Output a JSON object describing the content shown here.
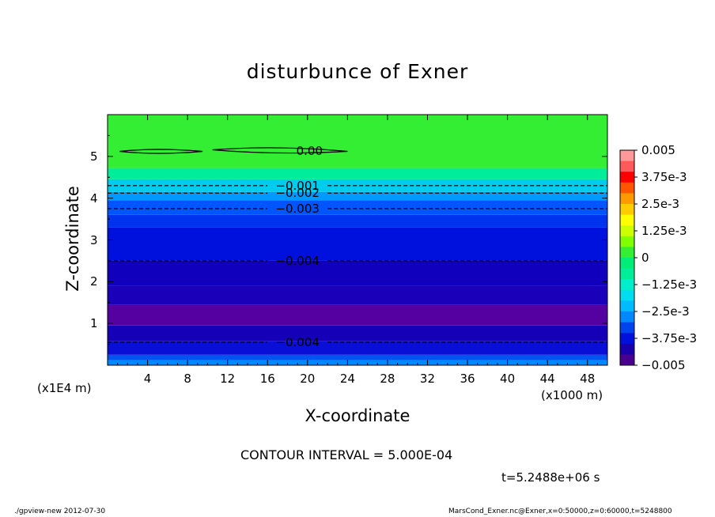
{
  "chart_data": {
    "type": "heatmap",
    "title": "disturbunce of Exner",
    "xlabel": "X-coordinate",
    "ylabel": "Z-coordinate",
    "x_unit": "(x1000 m)",
    "y_unit": "(x1E4 m)",
    "xlim": [
      0,
      50
    ],
    "ylim": [
      0,
      6
    ],
    "x_ticks": [
      "4",
      "8",
      "12",
      "16",
      "20",
      "24",
      "28",
      "32",
      "36",
      "40",
      "44",
      "48"
    ],
    "y_ticks": [
      "1",
      "2",
      "3",
      "4",
      "5"
    ],
    "colorbar_ticks": [
      "0.005",
      "3.75e-3",
      "2.5e-3",
      "1.25e-3",
      "0",
      "−1.25e-3",
      "−2.5e-3",
      "−3.75e-3",
      "−0.005"
    ],
    "colorbar_range": [
      -0.005,
      0.005
    ],
    "colorbar_colors": [
      "#ff9999",
      "#ff5a5a",
      "#ff0000",
      "#ff5500",
      "#ff9900",
      "#ffcc00",
      "#ffff00",
      "#ccff00",
      "#7fff00",
      "#33ee33",
      "#00ee77",
      "#00ee99",
      "#00eecc",
      "#00ddee",
      "#00bbff",
      "#0088ff",
      "#0044ee",
      "#0011dd",
      "#1a00aa",
      "#4a008f"
    ],
    "bands": [
      {
        "z_from": 0.0,
        "z_to": 0.12,
        "color": "#0088ff"
      },
      {
        "z_from": 0.12,
        "z_to": 0.25,
        "color": "#0055f0"
      },
      {
        "z_from": 0.25,
        "z_to": 0.58,
        "color": "#0a0fd8"
      },
      {
        "z_from": 0.58,
        "z_to": 0.95,
        "color": "#1500b8"
      },
      {
        "z_from": 0.95,
        "z_to": 1.45,
        "color": "#5500a0"
      },
      {
        "z_from": 1.45,
        "z_to": 1.9,
        "color": "#1a00b8"
      },
      {
        "z_from": 1.9,
        "z_to": 2.5,
        "color": "#1000bd"
      },
      {
        "z_from": 2.5,
        "z_to": 3.3,
        "color": "#0011dd"
      },
      {
        "z_from": 3.3,
        "z_to": 3.6,
        "color": "#0033ee"
      },
      {
        "z_from": 3.6,
        "z_to": 3.95,
        "color": "#0055ff"
      },
      {
        "z_from": 3.95,
        "z_to": 4.15,
        "color": "#0099ff"
      },
      {
        "z_from": 4.15,
        "z_to": 4.45,
        "color": "#00ccee"
      },
      {
        "z_from": 4.45,
        "z_to": 4.72,
        "color": "#00ee99"
      },
      {
        "z_from": 4.72,
        "z_to": 6.0,
        "color": "#33ee33"
      }
    ],
    "contours": [
      {
        "z": 5.12,
        "label": "0.00",
        "label_x": 20.2
      },
      {
        "z": 4.3,
        "label": "−0.001",
        "label_x": 19.0
      },
      {
        "z": 4.12,
        "label": "−0.002",
        "label_x": 19.0
      },
      {
        "z": 3.75,
        "label": "−0.003",
        "label_x": 19.0
      },
      {
        "z": 2.5,
        "label": "−0.004",
        "label_x": 19.0
      },
      {
        "z": 0.55,
        "label": "−0.004",
        "label_x": 19.0
      }
    ],
    "contour_interval": "CONTOUR INTERVAL = 5.000E-04",
    "time": "t=5.2488e+06 s"
  },
  "footer": {
    "left": "./gpview-new   2012-07-30",
    "right": "MarsCond_Exner.nc@Exner,x=0:50000,z=0:60000,t=5248800"
  }
}
